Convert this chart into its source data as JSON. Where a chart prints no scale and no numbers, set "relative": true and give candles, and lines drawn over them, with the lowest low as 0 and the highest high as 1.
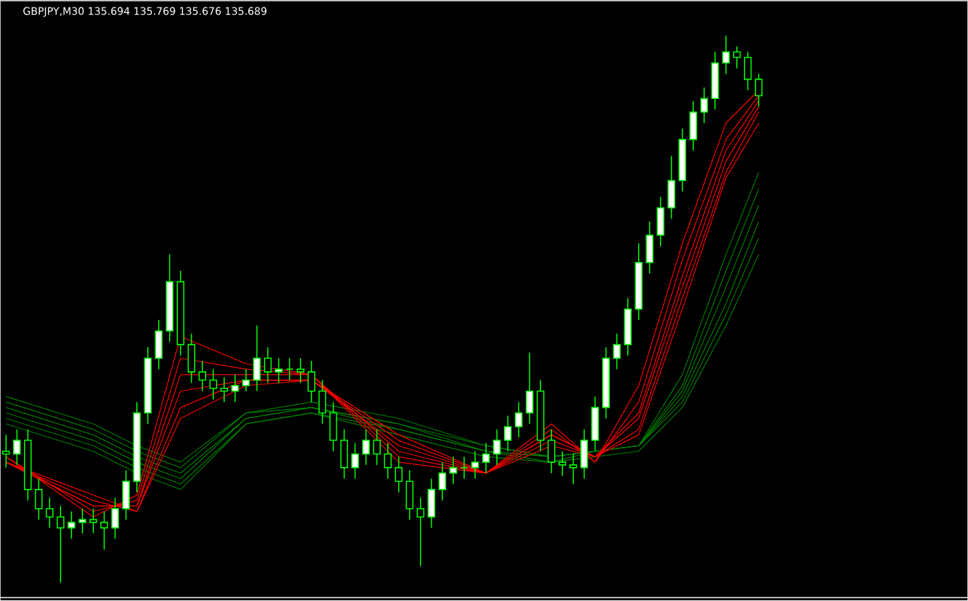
{
  "chart_data": {
    "type": "candlestick",
    "title": "GBPJPY,M30  135.694 135.769 135.676 135.689",
    "relative": true,
    "color": "#00ff00",
    "marker": "none",
    "line_style": "solid",
    "categories": [
      null,
      null,
      null,
      null,
      null,
      null,
      null,
      null,
      null,
      null,
      null,
      null,
      null,
      null,
      null,
      null,
      null,
      null,
      null,
      null,
      null,
      null,
      null,
      null,
      null,
      null,
      null,
      null,
      null,
      null,
      null,
      null,
      null,
      null,
      null,
      null,
      null,
      null,
      null,
      null,
      null,
      null,
      null,
      null,
      null,
      null,
      null,
      null,
      null,
      null,
      null,
      null,
      null,
      null,
      null,
      null,
      null,
      null,
      null,
      null,
      null,
      null,
      null,
      null,
      null,
      null,
      null,
      null,
      null,
      null
    ],
    "ohlc": [
      [
        0.24,
        0.27,
        0.21,
        0.235
      ],
      [
        0.235,
        0.28,
        0.215,
        0.26
      ],
      [
        0.26,
        0.28,
        0.15,
        0.17
      ],
      [
        0.17,
        0.19,
        0.115,
        0.135
      ],
      [
        0.135,
        0.155,
        0.1,
        0.12
      ],
      [
        0.12,
        0.14,
        0.0,
        0.1
      ],
      [
        0.1,
        0.13,
        0.08,
        0.11
      ],
      [
        0.11,
        0.135,
        0.09,
        0.115
      ],
      [
        0.115,
        0.135,
        0.09,
        0.11
      ],
      [
        0.11,
        0.13,
        0.06,
        0.1
      ],
      [
        0.1,
        0.155,
        0.08,
        0.135
      ],
      [
        0.135,
        0.205,
        0.115,
        0.185
      ],
      [
        0.185,
        0.33,
        0.165,
        0.31
      ],
      [
        0.31,
        0.43,
        0.29,
        0.41
      ],
      [
        0.41,
        0.48,
        0.39,
        0.46
      ],
      [
        0.46,
        0.6,
        0.44,
        0.55
      ],
      [
        0.55,
        0.57,
        0.415,
        0.435
      ],
      [
        0.435,
        0.455,
        0.365,
        0.385
      ],
      [
        0.385,
        0.405,
        0.35,
        0.37
      ],
      [
        0.37,
        0.39,
        0.335,
        0.355
      ],
      [
        0.355,
        0.375,
        0.33,
        0.35
      ],
      [
        0.35,
        0.38,
        0.33,
        0.36
      ],
      [
        0.36,
        0.39,
        0.35,
        0.37
      ],
      [
        0.37,
        0.47,
        0.35,
        0.41
      ],
      [
        0.41,
        0.43,
        0.365,
        0.385
      ],
      [
        0.385,
        0.41,
        0.365,
        0.39
      ],
      [
        0.39,
        0.41,
        0.37,
        0.39
      ],
      [
        0.39,
        0.41,
        0.365,
        0.385
      ],
      [
        0.385,
        0.405,
        0.33,
        0.35
      ],
      [
        0.35,
        0.37,
        0.29,
        0.31
      ],
      [
        0.31,
        0.33,
        0.24,
        0.26
      ],
      [
        0.26,
        0.28,
        0.19,
        0.21
      ],
      [
        0.21,
        0.255,
        0.19,
        0.235
      ],
      [
        0.235,
        0.28,
        0.215,
        0.26
      ],
      [
        0.26,
        0.28,
        0.215,
        0.235
      ],
      [
        0.235,
        0.255,
        0.19,
        0.21
      ],
      [
        0.21,
        0.23,
        0.165,
        0.185
      ],
      [
        0.185,
        0.205,
        0.115,
        0.135
      ],
      [
        0.135,
        0.155,
        0.03,
        0.12
      ],
      [
        0.12,
        0.19,
        0.1,
        0.17
      ],
      [
        0.17,
        0.22,
        0.15,
        0.2
      ],
      [
        0.2,
        0.23,
        0.18,
        0.21
      ],
      [
        0.21,
        0.23,
        0.19,
        0.21
      ],
      [
        0.21,
        0.24,
        0.19,
        0.22
      ],
      [
        0.22,
        0.255,
        0.2,
        0.235
      ],
      [
        0.235,
        0.28,
        0.215,
        0.26
      ],
      [
        0.26,
        0.305,
        0.24,
        0.285
      ],
      [
        0.285,
        0.33,
        0.265,
        0.31
      ],
      [
        0.31,
        0.42,
        0.29,
        0.35
      ],
      [
        0.35,
        0.37,
        0.24,
        0.26
      ],
      [
        0.26,
        0.28,
        0.2,
        0.22
      ],
      [
        0.22,
        0.24,
        0.195,
        0.215
      ],
      [
        0.215,
        0.235,
        0.18,
        0.21
      ],
      [
        0.21,
        0.28,
        0.19,
        0.26
      ],
      [
        0.26,
        0.34,
        0.24,
        0.32
      ],
      [
        0.32,
        0.43,
        0.3,
        0.41
      ],
      [
        0.41,
        0.455,
        0.39,
        0.435
      ],
      [
        0.435,
        0.52,
        0.415,
        0.5
      ],
      [
        0.5,
        0.62,
        0.48,
        0.585
      ],
      [
        0.585,
        0.66,
        0.565,
        0.635
      ],
      [
        0.635,
        0.705,
        0.615,
        0.685
      ],
      [
        0.685,
        0.78,
        0.665,
        0.735
      ],
      [
        0.735,
        0.83,
        0.715,
        0.81
      ],
      [
        0.81,
        0.88,
        0.79,
        0.86
      ],
      [
        0.86,
        0.905,
        0.84,
        0.885
      ],
      [
        0.885,
        0.97,
        0.865,
        0.95
      ],
      [
        0.95,
        1.0,
        0.93,
        0.97
      ],
      [
        0.97,
        0.98,
        0.94,
        0.96
      ],
      [
        0.96,
        0.97,
        0.9,
        0.92
      ],
      [
        0.92,
        0.93,
        0.87,
        0.89
      ]
    ],
    "series": [
      {
        "type": "line",
        "color": "#008000",
        "values": [
          0.34,
          null,
          null,
          null,
          null,
          null,
          null,
          null,
          0.29,
          null,
          null,
          null,
          0.25,
          null,
          null,
          null,
          0.22,
          null,
          null,
          null,
          null,
          null,
          0.31,
          null,
          null,
          null,
          null,
          null,
          0.33,
          null,
          null,
          null,
          null,
          null,
          null,
          null,
          0.3,
          null,
          null,
          null,
          null,
          null,
          null,
          null,
          0.25,
          null,
          null,
          null,
          null,
          null,
          0.23,
          null,
          null,
          null,
          0.24,
          null,
          null,
          null,
          0.25,
          null,
          null,
          null,
          0.38,
          null,
          null,
          null,
          0.6,
          null,
          null,
          0.75
        ]
      },
      {
        "type": "line",
        "color": "#008000",
        "values": [
          0.33,
          null,
          null,
          null,
          null,
          null,
          null,
          null,
          0.28,
          null,
          null,
          null,
          0.24,
          null,
          null,
          null,
          0.21,
          null,
          null,
          null,
          null,
          null,
          0.31,
          null,
          null,
          null,
          null,
          null,
          0.32,
          null,
          null,
          null,
          null,
          null,
          null,
          null,
          0.29,
          null,
          null,
          null,
          null,
          null,
          null,
          null,
          0.25,
          null,
          null,
          null,
          null,
          null,
          0.23,
          null,
          null,
          null,
          0.24,
          null,
          null,
          null,
          0.25,
          null,
          null,
          null,
          0.36,
          null,
          null,
          null,
          0.57,
          null,
          null,
          0.72
        ]
      },
      {
        "type": "line",
        "color": "#008000",
        "values": [
          0.32,
          null,
          null,
          null,
          null,
          null,
          null,
          null,
          0.27,
          null,
          null,
          null,
          0.23,
          null,
          null,
          null,
          0.2,
          null,
          null,
          null,
          null,
          null,
          0.3,
          null,
          null,
          null,
          null,
          null,
          0.32,
          null,
          null,
          null,
          null,
          null,
          null,
          null,
          0.29,
          null,
          null,
          null,
          null,
          null,
          null,
          null,
          0.24,
          null,
          null,
          null,
          null,
          null,
          0.23,
          null,
          null,
          null,
          0.24,
          null,
          null,
          null,
          0.25,
          null,
          null,
          null,
          0.35,
          null,
          null,
          null,
          0.54,
          null,
          null,
          0.69
        ]
      },
      {
        "type": "line",
        "color": "#008000",
        "values": [
          0.31,
          null,
          null,
          null,
          null,
          null,
          null,
          null,
          0.26,
          null,
          null,
          null,
          0.22,
          null,
          null,
          null,
          0.19,
          null,
          null,
          null,
          null,
          null,
          0.3,
          null,
          null,
          null,
          null,
          null,
          0.32,
          null,
          null,
          null,
          null,
          null,
          null,
          null,
          0.28,
          null,
          null,
          null,
          null,
          null,
          null,
          null,
          0.24,
          null,
          null,
          null,
          null,
          null,
          0.23,
          null,
          null,
          null,
          0.24,
          null,
          null,
          null,
          0.25,
          null,
          null,
          null,
          0.34,
          null,
          null,
          null,
          0.51,
          null,
          null,
          0.66
        ]
      },
      {
        "type": "line",
        "color": "#008000",
        "values": [
          0.3,
          null,
          null,
          null,
          null,
          null,
          null,
          null,
          0.25,
          null,
          null,
          null,
          0.21,
          null,
          null,
          null,
          0.18,
          null,
          null,
          null,
          null,
          null,
          0.29,
          null,
          null,
          null,
          null,
          null,
          0.31,
          null,
          null,
          null,
          null,
          null,
          null,
          null,
          0.28,
          null,
          null,
          null,
          null,
          null,
          null,
          null,
          0.24,
          null,
          null,
          null,
          null,
          null,
          0.22,
          null,
          null,
          null,
          0.24,
          null,
          null,
          null,
          0.25,
          null,
          null,
          null,
          0.33,
          null,
          null,
          null,
          0.49,
          null,
          null,
          0.63
        ]
      },
      {
        "type": "line",
        "color": "#008000",
        "values": [
          0.29,
          null,
          null,
          null,
          null,
          null,
          null,
          null,
          0.24,
          null,
          null,
          null,
          0.2,
          null,
          null,
          null,
          0.17,
          null,
          null,
          null,
          null,
          null,
          0.29,
          null,
          null,
          null,
          null,
          null,
          0.31,
          null,
          null,
          null,
          null,
          null,
          null,
          null,
          0.27,
          null,
          null,
          null,
          null,
          null,
          null,
          null,
          0.23,
          null,
          null,
          null,
          null,
          null,
          0.22,
          null,
          null,
          null,
          0.23,
          null,
          null,
          null,
          0.24,
          null,
          null,
          null,
          0.32,
          null,
          null,
          null,
          0.47,
          null,
          null,
          0.6
        ]
      },
      {
        "type": "line",
        "color": "#ff0000",
        "values": [
          0.23,
          null,
          null,
          null,
          null,
          null,
          null,
          null,
          0.12,
          null,
          null,
          null,
          0.16,
          null,
          null,
          null,
          0.45,
          null,
          null,
          null,
          null,
          null,
          0.4,
          null,
          null,
          null,
          null,
          null,
          0.38,
          null,
          null,
          null,
          null,
          null,
          null,
          null,
          0.22,
          null,
          null,
          null,
          null,
          null,
          null,
          null,
          0.2,
          null,
          null,
          null,
          null,
          null,
          0.29,
          null,
          null,
          null,
          0.22,
          null,
          null,
          null,
          0.36,
          null,
          null,
          null,
          0.62,
          null,
          null,
          null,
          0.84,
          null,
          null,
          0.9
        ]
      },
      {
        "type": "line",
        "color": "#ff0000",
        "values": [
          0.23,
          null,
          null,
          null,
          null,
          null,
          null,
          null,
          0.13,
          null,
          null,
          null,
          0.15,
          null,
          null,
          null,
          0.41,
          null,
          null,
          null,
          null,
          null,
          0.39,
          null,
          null,
          null,
          null,
          null,
          0.38,
          null,
          null,
          null,
          null,
          null,
          null,
          null,
          0.23,
          null,
          null,
          null,
          null,
          null,
          null,
          null,
          0.2,
          null,
          null,
          null,
          null,
          null,
          0.28,
          null,
          null,
          null,
          0.22,
          null,
          null,
          null,
          0.33,
          null,
          null,
          null,
          0.59,
          null,
          null,
          null,
          0.81,
          null,
          null,
          0.89
        ]
      },
      {
        "type": "line",
        "color": "#ff0000",
        "values": [
          0.22,
          null,
          null,
          null,
          null,
          null,
          null,
          null,
          0.14,
          null,
          null,
          null,
          0.14,
          null,
          null,
          null,
          0.38,
          null,
          null,
          null,
          null,
          null,
          0.38,
          null,
          null,
          null,
          null,
          null,
          0.38,
          null,
          null,
          null,
          null,
          null,
          null,
          null,
          0.24,
          null,
          null,
          null,
          null,
          null,
          null,
          null,
          0.2,
          null,
          null,
          null,
          null,
          null,
          0.27,
          null,
          null,
          null,
          0.23,
          null,
          null,
          null,
          0.31,
          null,
          null,
          null,
          0.56,
          null,
          null,
          null,
          0.79,
          null,
          null,
          0.88
        ]
      },
      {
        "type": "line",
        "color": "#ff0000",
        "values": [
          0.22,
          null,
          null,
          null,
          null,
          null,
          null,
          null,
          0.14,
          null,
          null,
          null,
          0.14,
          null,
          null,
          null,
          0.35,
          null,
          null,
          null,
          null,
          null,
          0.37,
          null,
          null,
          null,
          null,
          null,
          0.37,
          null,
          null,
          null,
          null,
          null,
          null,
          null,
          0.25,
          null,
          null,
          null,
          null,
          null,
          null,
          null,
          0.2,
          null,
          null,
          null,
          null,
          null,
          0.27,
          null,
          null,
          null,
          0.23,
          null,
          null,
          null,
          0.3,
          null,
          null,
          null,
          0.54,
          null,
          null,
          null,
          0.77,
          null,
          null,
          0.87
        ]
      },
      {
        "type": "line",
        "color": "#ff0000",
        "values": [
          0.22,
          null,
          null,
          null,
          null,
          null,
          null,
          null,
          0.15,
          null,
          null,
          null,
          0.13,
          null,
          null,
          null,
          0.32,
          null,
          null,
          null,
          null,
          null,
          0.37,
          null,
          null,
          null,
          null,
          null,
          0.37,
          null,
          null,
          null,
          null,
          null,
          null,
          null,
          0.26,
          null,
          null,
          null,
          null,
          null,
          null,
          null,
          0.2,
          null,
          null,
          null,
          null,
          null,
          0.26,
          null,
          null,
          null,
          0.23,
          null,
          null,
          null,
          0.28,
          null,
          null,
          null,
          0.52,
          null,
          null,
          null,
          0.75,
          null,
          null,
          0.86
        ]
      },
      {
        "type": "line",
        "color": "#ff0000",
        "values": [
          0.22,
          null,
          null,
          null,
          null,
          null,
          null,
          null,
          0.16,
          null,
          null,
          null,
          0.13,
          null,
          null,
          null,
          0.3,
          null,
          null,
          null,
          null,
          null,
          0.36,
          null,
          null,
          null,
          null,
          null,
          0.37,
          null,
          null,
          null,
          null,
          null,
          null,
          null,
          0.27,
          null,
          null,
          null,
          null,
          null,
          null,
          null,
          0.2,
          null,
          null,
          null,
          null,
          null,
          0.25,
          null,
          null,
          null,
          0.23,
          null,
          null,
          null,
          0.27,
          null,
          null,
          null,
          0.5,
          null,
          null,
          null,
          0.74,
          null,
          null,
          0.84
        ]
      }
    ]
  }
}
